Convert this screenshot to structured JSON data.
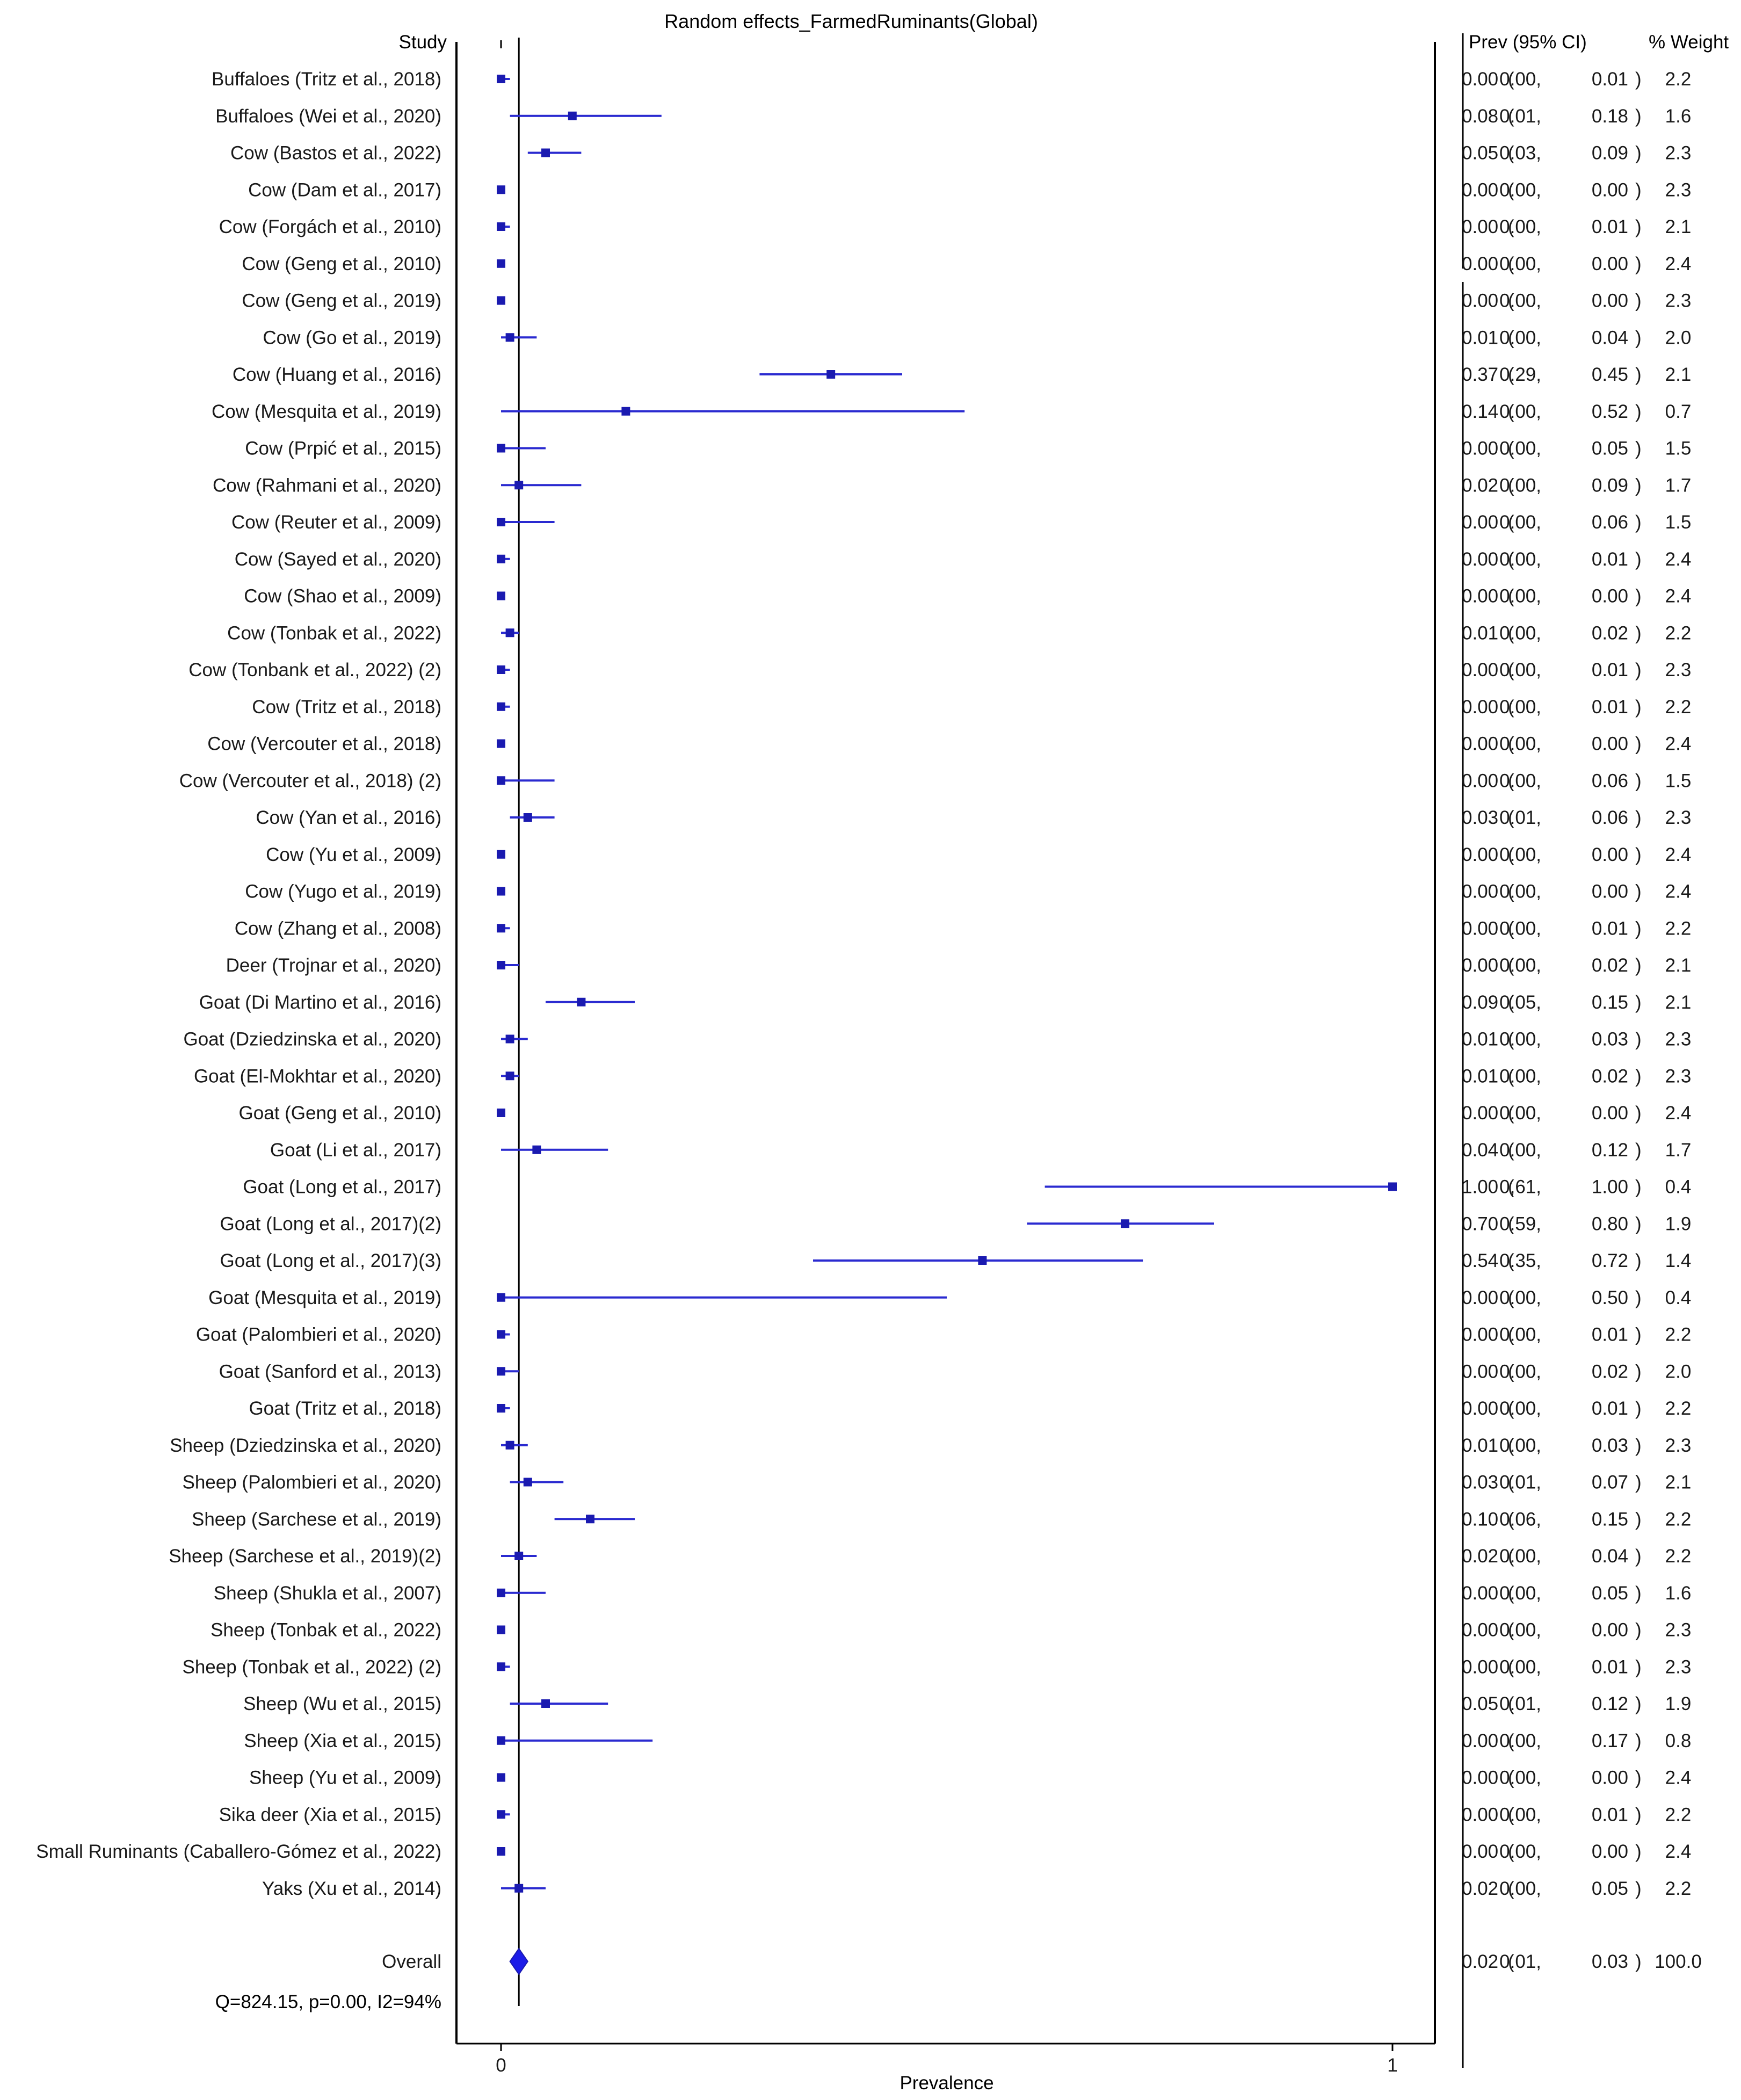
{
  "chart_data": {
    "type": "forest",
    "title": "Random effects_FarmedRuminants(Global)",
    "xlabel": "Prevalence",
    "xlim": [
      0,
      1
    ],
    "x_ticks": [
      "0",
      "1"
    ],
    "column_headers": {
      "study": "Study",
      "estimate": "Prev (95% CI)",
      "weight": "% Weight"
    },
    "reference_line": 0.02,
    "studies": [
      {
        "label": "Buffaloes (Tritz et al., 2018)",
        "est": 0.0,
        "lo": 0.0,
        "hi": 0.01,
        "weight": "2.2",
        "est_text": "0.00",
        "lo_text": "0.00",
        "hi_text": "0.01"
      },
      {
        "label": "Buffaloes (Wei et al., 2020)",
        "est": 0.08,
        "lo": 0.01,
        "hi": 0.18,
        "weight": "1.6",
        "est_text": "0.08",
        "lo_text": "0.01",
        "hi_text": "0.18"
      },
      {
        "label": "Cow (Bastos et al., 2022)",
        "est": 0.05,
        "lo": 0.03,
        "hi": 0.09,
        "weight": "2.3",
        "est_text": "0.05",
        "lo_text": "0.03",
        "hi_text": "0.09"
      },
      {
        "label": "Cow (Dam et al., 2017)",
        "est": 0.0,
        "lo": 0.0,
        "hi": 0.0,
        "weight": "2.3",
        "est_text": "0.00",
        "lo_text": "0.00",
        "hi_text": "0.00"
      },
      {
        "label": "Cow (Forgách et al., 2010)",
        "est": 0.0,
        "lo": 0.0,
        "hi": 0.01,
        "weight": "2.1",
        "est_text": "0.00",
        "lo_text": "0.00",
        "hi_text": "0.01"
      },
      {
        "label": "Cow (Geng et al., 2010)",
        "est": 0.0,
        "lo": 0.0,
        "hi": 0.0,
        "weight": "2.4",
        "est_text": "0.00",
        "lo_text": "0.00",
        "hi_text": "0.00"
      },
      {
        "label": "Cow (Geng et al., 2019)",
        "est": 0.0,
        "lo": 0.0,
        "hi": 0.0,
        "weight": "2.3",
        "est_text": "0.00",
        "lo_text": "0.00",
        "hi_text": "0.00"
      },
      {
        "label": "Cow (Go et al., 2019)",
        "est": 0.01,
        "lo": 0.0,
        "hi": 0.04,
        "weight": "2.0",
        "est_text": "0.01",
        "lo_text": "0.00",
        "hi_text": "0.04"
      },
      {
        "label": "Cow (Huang et al., 2016)",
        "est": 0.37,
        "lo": 0.29,
        "hi": 0.45,
        "weight": "2.1",
        "est_text": "0.37",
        "lo_text": "0.29",
        "hi_text": "0.45"
      },
      {
        "label": "Cow (Mesquita et al., 2019)",
        "est": 0.14,
        "lo": 0.0,
        "hi": 0.52,
        "weight": "0.7",
        "est_text": "0.14",
        "lo_text": "0.00",
        "hi_text": "0.52"
      },
      {
        "label": "Cow (Prpić  et al., 2015)",
        "est": 0.0,
        "lo": 0.0,
        "hi": 0.05,
        "weight": "1.5",
        "est_text": "0.00",
        "lo_text": "0.00",
        "hi_text": "0.05"
      },
      {
        "label": "Cow (Rahmani et al., 2020)",
        "est": 0.02,
        "lo": 0.0,
        "hi": 0.09,
        "weight": "1.7",
        "est_text": "0.02",
        "lo_text": "0.00",
        "hi_text": "0.09"
      },
      {
        "label": "Cow (Reuter et al., 2009)",
        "est": 0.0,
        "lo": 0.0,
        "hi": 0.06,
        "weight": "1.5",
        "est_text": "0.00",
        "lo_text": "0.00",
        "hi_text": "0.06"
      },
      {
        "label": "Cow (Sayed et al., 2020)",
        "est": 0.0,
        "lo": 0.0,
        "hi": 0.01,
        "weight": "2.4",
        "est_text": "0.00",
        "lo_text": "0.00",
        "hi_text": "0.01"
      },
      {
        "label": "Cow (Shao et al., 2009)",
        "est": 0.0,
        "lo": 0.0,
        "hi": 0.0,
        "weight": "2.4",
        "est_text": "0.00",
        "lo_text": "0.00",
        "hi_text": "0.00"
      },
      {
        "label": "Cow (Tonbak et al., 2022)",
        "est": 0.01,
        "lo": 0.0,
        "hi": 0.02,
        "weight": "2.2",
        "est_text": "0.01",
        "lo_text": "0.00",
        "hi_text": "0.02"
      },
      {
        "label": "Cow (Tonbank et al., 2022) (2)",
        "est": 0.0,
        "lo": 0.0,
        "hi": 0.01,
        "weight": "2.3",
        "est_text": "0.00",
        "lo_text": "0.00",
        "hi_text": "0.01"
      },
      {
        "label": "Cow (Tritz et al., 2018)",
        "est": 0.0,
        "lo": 0.0,
        "hi": 0.01,
        "weight": "2.2",
        "est_text": "0.00",
        "lo_text": "0.00",
        "hi_text": "0.01"
      },
      {
        "label": "Cow (Vercouter et al., 2018)",
        "est": 0.0,
        "lo": 0.0,
        "hi": 0.0,
        "weight": "2.4",
        "est_text": "0.00",
        "lo_text": "0.00",
        "hi_text": "0.00"
      },
      {
        "label": "Cow (Vercouter et al., 2018) (2)",
        "est": 0.0,
        "lo": 0.0,
        "hi": 0.06,
        "weight": "1.5",
        "est_text": "0.00",
        "lo_text": "0.00",
        "hi_text": "0.06"
      },
      {
        "label": "Cow (Yan et al., 2016)",
        "est": 0.03,
        "lo": 0.01,
        "hi": 0.06,
        "weight": "2.3",
        "est_text": "0.03",
        "lo_text": "0.01",
        "hi_text": "0.06"
      },
      {
        "label": "Cow (Yu et al., 2009)",
        "est": 0.0,
        "lo": 0.0,
        "hi": 0.0,
        "weight": "2.4",
        "est_text": "0.00",
        "lo_text": "0.00",
        "hi_text": "0.00"
      },
      {
        "label": "Cow (Yugo et al., 2019)",
        "est": 0.0,
        "lo": 0.0,
        "hi": 0.0,
        "weight": "2.4",
        "est_text": "0.00",
        "lo_text": "0.00",
        "hi_text": "0.00"
      },
      {
        "label": "Cow (Zhang et al., 2008)",
        "est": 0.0,
        "lo": 0.0,
        "hi": 0.01,
        "weight": "2.2",
        "est_text": "0.00",
        "lo_text": "0.00",
        "hi_text": "0.01"
      },
      {
        "label": "Deer (Trojnar et al., 2020)",
        "est": 0.0,
        "lo": 0.0,
        "hi": 0.02,
        "weight": "2.1",
        "est_text": "0.00",
        "lo_text": "0.00",
        "hi_text": "0.02"
      },
      {
        "label": "Goat (Di Martino et al., 2016)",
        "est": 0.09,
        "lo": 0.05,
        "hi": 0.15,
        "weight": "2.1",
        "est_text": "0.09",
        "lo_text": "0.05",
        "hi_text": "0.15"
      },
      {
        "label": "Goat (Dziedzinska et al., 2020)",
        "est": 0.01,
        "lo": 0.0,
        "hi": 0.03,
        "weight": "2.3",
        "est_text": "0.01",
        "lo_text": "0.00",
        "hi_text": "0.03"
      },
      {
        "label": "Goat (El-Mokhtar et al., 2020)",
        "est": 0.01,
        "lo": 0.0,
        "hi": 0.02,
        "weight": "2.3",
        "est_text": "0.01",
        "lo_text": "0.00",
        "hi_text": "0.02"
      },
      {
        "label": "Goat (Geng et al., 2010)",
        "est": 0.0,
        "lo": 0.0,
        "hi": 0.0,
        "weight": "2.4",
        "est_text": "0.00",
        "lo_text": "0.00",
        "hi_text": "0.00"
      },
      {
        "label": "Goat (Li et al., 2017)",
        "est": 0.04,
        "lo": 0.0,
        "hi": 0.12,
        "weight": "1.7",
        "est_text": "0.04",
        "lo_text": "0.00",
        "hi_text": "0.12"
      },
      {
        "label": "Goat (Long et al., 2017)",
        "est": 1.0,
        "lo": 0.61,
        "hi": 1.0,
        "weight": "0.4",
        "est_text": "1.00",
        "lo_text": "0,61",
        "hi_text": "1.00"
      },
      {
        "label": "Goat (Long et al., 2017)(2)",
        "est": 0.7,
        "lo": 0.59,
        "hi": 0.8,
        "weight": "1.9",
        "est_text": "0.70",
        "lo_text": "0.59",
        "hi_text": "0.80"
      },
      {
        "label": "Goat (Long et al., 2017)(3)",
        "est": 0.54,
        "lo": 0.35,
        "hi": 0.72,
        "weight": "1.4",
        "est_text": "0.54",
        "lo_text": "0.35",
        "hi_text": "0.72"
      },
      {
        "label": "Goat (Mesquita et al., 2019)",
        "est": 0.0,
        "lo": 0.0,
        "hi": 0.5,
        "weight": "0.4",
        "est_text": "0.00",
        "lo_text": "0.00",
        "hi_text": "0.50"
      },
      {
        "label": "Goat (Palombieri et al., 2020)",
        "est": 0.0,
        "lo": 0.0,
        "hi": 0.01,
        "weight": "2.2",
        "est_text": "0.00",
        "lo_text": "0.00",
        "hi_text": "0.01"
      },
      {
        "label": "Goat (Sanford et al., 2013)",
        "est": 0.0,
        "lo": 0.0,
        "hi": 0.02,
        "weight": "2.0",
        "est_text": "0.00",
        "lo_text": "0.00",
        "hi_text": "0.02"
      },
      {
        "label": "Goat (Tritz et al., 2018)",
        "est": 0.0,
        "lo": 0.0,
        "hi": 0.01,
        "weight": "2.2",
        "est_text": "0.00",
        "lo_text": "0.00",
        "hi_text": "0.01"
      },
      {
        "label": "Sheep (Dziedzinska et al., 2020)",
        "est": 0.01,
        "lo": 0.0,
        "hi": 0.03,
        "weight": "2.3",
        "est_text": "0.01",
        "lo_text": "0.00",
        "hi_text": "0.03"
      },
      {
        "label": "Sheep (Palombieri et al., 2020)",
        "est": 0.03,
        "lo": 0.01,
        "hi": 0.07,
        "weight": "2.1",
        "est_text": "0.03",
        "lo_text": "0.01",
        "hi_text": "0.07"
      },
      {
        "label": "Sheep (Sarchese et al., 2019)",
        "est": 0.1,
        "lo": 0.06,
        "hi": 0.15,
        "weight": "2.2",
        "est_text": "0.10",
        "lo_text": "0.06",
        "hi_text": "0.15"
      },
      {
        "label": "Sheep (Sarchese et al., 2019)(2)",
        "est": 0.02,
        "lo": 0.0,
        "hi": 0.04,
        "weight": "2.2",
        "est_text": "0.02",
        "lo_text": "0.00",
        "hi_text": "0.04"
      },
      {
        "label": "Sheep (Shukla et al., 2007)",
        "est": 0.0,
        "lo": 0.0,
        "hi": 0.05,
        "weight": "1.6",
        "est_text": "0.00",
        "lo_text": "0.00",
        "hi_text": "0.05"
      },
      {
        "label": "Sheep (Tonbak et al., 2022)",
        "est": 0.0,
        "lo": 0.0,
        "hi": 0.0,
        "weight": "2.3",
        "est_text": "0.00",
        "lo_text": "0.00",
        "hi_text": "0.00"
      },
      {
        "label": "Sheep (Tonbak et al., 2022) (2)",
        "est": 0.0,
        "lo": 0.0,
        "hi": 0.01,
        "weight": "2.3",
        "est_text": "0.00",
        "lo_text": "0.00",
        "hi_text": "0.01"
      },
      {
        "label": "Sheep (Wu et al., 2015)",
        "est": 0.05,
        "lo": 0.01,
        "hi": 0.12,
        "weight": "1.9",
        "est_text": "0.05",
        "lo_text": "0.01",
        "hi_text": "0.12"
      },
      {
        "label": "Sheep (Xia et al., 2015)",
        "est": 0.0,
        "lo": 0.0,
        "hi": 0.17,
        "weight": "0.8",
        "est_text": "0.00",
        "lo_text": "0.00",
        "hi_text": "0.17"
      },
      {
        "label": "Sheep (Yu et al., 2009)",
        "est": 0.0,
        "lo": 0.0,
        "hi": 0.0,
        "weight": "2.4",
        "est_text": "0.00",
        "lo_text": "0.00",
        "hi_text": "0.00"
      },
      {
        "label": "Sika deer (Xia et al., 2015)",
        "est": 0.0,
        "lo": 0.0,
        "hi": 0.01,
        "weight": "2.2",
        "est_text": "0.00",
        "lo_text": "0.00",
        "hi_text": "0.01"
      },
      {
        "label": "Small Ruminants (Caballero-Gómez et al., 2022)",
        "est": 0.0,
        "lo": 0.0,
        "hi": 0.0,
        "weight": "2.4",
        "est_text": "0.00",
        "lo_text": "0.00",
        "hi_text": "0.00"
      },
      {
        "label": "Yaks (Xu et al., 2014)",
        "est": 0.02,
        "lo": 0.0,
        "hi": 0.05,
        "weight": "2.2",
        "est_text": "0.02",
        "lo_text": "0.00",
        "hi_text": "0.05"
      }
    ],
    "overall": {
      "label": "Overall",
      "est": 0.02,
      "lo": 0.01,
      "hi": 0.03,
      "weight": "100.0",
      "est_text": "0.02",
      "lo_text": "0.01",
      "hi_text": "0.03"
    },
    "heterogeneity": "Q=824.15, p=0.00, I2=94%",
    "colors": {
      "marker": "#1a1ab0",
      "line": "#2a2ad0",
      "title": "#1515e0",
      "axis": "#000000",
      "text": "#1a1a1a"
    }
  }
}
